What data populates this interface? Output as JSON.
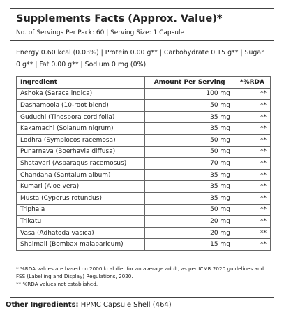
{
  "header": {
    "title": "Supplements Facts (Approx. Value)*",
    "servings": "No. of Servings Per Pack: 60 | Serving Size: 1 Capsule"
  },
  "nutrition": "Energy 0.60 kcal (0.03%) | Protein 0.00 g** | Carbohydrate 0.15 g** | Sugar 0 g** | Fat 0.00 g** | Sodium 0 mg (0%)",
  "table": {
    "headers": [
      "Ingredient",
      "Amount Per Serving",
      "*%RDA"
    ],
    "rows": [
      [
        "Ashoka (Saraca indica)",
        "100 mg",
        "**"
      ],
      [
        "Dashamoola (10-root blend)",
        "50 mg",
        "**"
      ],
      [
        "Guduchi (Tinospora cordifolia)",
        "35 mg",
        "**"
      ],
      [
        "Kakamachi (Solanum nigrum)",
        "35 mg",
        "**"
      ],
      [
        "Lodhra (Symplocos racemosa)",
        "50 mg",
        "**"
      ],
      [
        "Punarnava (Boerhavia diffusa)",
        "50 mg",
        "**"
      ],
      [
        "Shatavari (Asparagus racemosus)",
        "70 mg",
        "**"
      ],
      [
        "Chandana (Santalum album)",
        "35 mg",
        "**"
      ],
      [
        "Kumari (Aloe vera)",
        "35 mg",
        "**"
      ],
      [
        "Musta (Cyperus rotundus)",
        "35 mg",
        "**"
      ],
      [
        "Triphala",
        "50 mg",
        "**"
      ],
      [
        "Trikatu",
        "20 mg",
        "**"
      ],
      [
        "Vasa (Adhatoda vasica)",
        "20 mg",
        "**"
      ],
      [
        "Shalmali (Bombax malabaricum)",
        "15 mg",
        "**"
      ]
    ]
  },
  "footnotes": [
    "* %RDA values are based on 2000 kcal diet for an average adult, as per ICMR 2020 guidelines and FSS (Labelling and Display) Regulations, 2020.",
    "** %RDA values not established."
  ],
  "other": {
    "label": "Other Ingredients:",
    "value": "HPMC Capsule Shell (464)"
  }
}
